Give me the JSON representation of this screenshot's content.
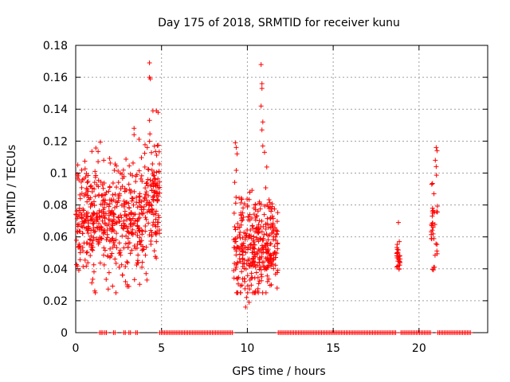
{
  "chart_data": {
    "type": "scatter",
    "title": "Day 175 of 2018, SRMTID for receiver kunu",
    "xlabel": "GPS time / hours",
    "ylabel": "SRMTID / TECUs",
    "xlim": [
      0,
      24
    ],
    "ylim": [
      0,
      0.18
    ],
    "xticks": [
      0,
      5,
      10,
      15,
      20
    ],
    "yticks": [
      0,
      0.02,
      0.04,
      0.06,
      0.08,
      0.1,
      0.12,
      0.14,
      0.16,
      0.18
    ],
    "xtick_labels": [
      "0",
      "5",
      "10",
      "15",
      "20"
    ],
    "ytick_labels": [
      "0",
      "0.02",
      "0.04",
      "0.06",
      "0.08",
      "0.1",
      "0.12",
      "0.14",
      "0.16",
      "0.18"
    ],
    "grid": true,
    "marker": "+",
    "color": "#ff0000",
    "clusters": [
      {
        "name": "hours 0-5",
        "x_range": [
          0.0,
          4.9
        ],
        "y_center": 0.072,
        "y_spread": 0.018,
        "count": 620
      },
      {
        "name": "hours 9-11.8",
        "x_range": [
          9.2,
          11.8
        ],
        "y_center": 0.055,
        "y_spread": 0.016,
        "count": 360
      },
      {
        "name": "hour 18.8",
        "x_range": [
          18.7,
          18.9
        ],
        "y_center": 0.046,
        "y_spread": 0.004,
        "count": 25
      },
      {
        "name": "hour 21",
        "x_range": [
          20.7,
          21.1
        ],
        "y_center": 0.068,
        "y_spread": 0.015,
        "count": 35
      }
    ],
    "outliers": [
      {
        "x": 4.3,
        "y": 0.169
      },
      {
        "x": 4.3,
        "y": 0.16
      },
      {
        "x": 4.35,
        "y": 0.159
      },
      {
        "x": 10.8,
        "y": 0.168
      },
      {
        "x": 10.85,
        "y": 0.156
      },
      {
        "x": 10.85,
        "y": 0.153
      },
      {
        "x": 10.8,
        "y": 0.142
      },
      {
        "x": 10.9,
        "y": 0.132
      },
      {
        "x": 10.85,
        "y": 0.127
      },
      {
        "x": 4.7,
        "y": 0.139
      },
      {
        "x": 4.8,
        "y": 0.138
      },
      {
        "x": 3.4,
        "y": 0.128
      },
      {
        "x": 3.4,
        "y": 0.124
      },
      {
        "x": 4.3,
        "y": 0.133
      },
      {
        "x": 4.5,
        "y": 0.139
      },
      {
        "x": 9.3,
        "y": 0.119
      },
      {
        "x": 9.35,
        "y": 0.116
      },
      {
        "x": 9.4,
        "y": 0.112
      },
      {
        "x": 10.9,
        "y": 0.117
      },
      {
        "x": 11.0,
        "y": 0.113
      },
      {
        "x": 21.0,
        "y": 0.116
      },
      {
        "x": 21.05,
        "y": 0.114
      },
      {
        "x": 20.95,
        "y": 0.108
      },
      {
        "x": 21.0,
        "y": 0.104
      },
      {
        "x": 18.8,
        "y": 0.069
      },
      {
        "x": 18.85,
        "y": 0.057
      },
      {
        "x": 9.9,
        "y": 0.016
      },
      {
        "x": 9.95,
        "y": 0.022
      },
      {
        "x": 10.1,
        "y": 0.019
      },
      {
        "x": 3.0,
        "y": 0.03
      },
      {
        "x": 2.9,
        "y": 0.032
      },
      {
        "x": 3.1,
        "y": 0.029
      },
      {
        "x": 4.15,
        "y": 0.033
      },
      {
        "x": 4.1,
        "y": 0.037
      },
      {
        "x": 11.4,
        "y": 0.03
      },
      {
        "x": 10.4,
        "y": 0.025
      },
      {
        "x": 10.6,
        "y": 0.026
      }
    ],
    "zero_segments": [
      [
        1.4,
        1.6
      ],
      [
        1.7,
        1.8
      ],
      [
        2.2,
        2.3
      ],
      [
        2.8,
        2.9
      ],
      [
        3.1,
        3.2
      ],
      [
        3.5,
        3.6
      ],
      [
        4.9,
        9.2
      ],
      [
        11.8,
        18.7
      ],
      [
        18.95,
        20.7
      ],
      [
        21.1,
        23.0
      ]
    ]
  }
}
